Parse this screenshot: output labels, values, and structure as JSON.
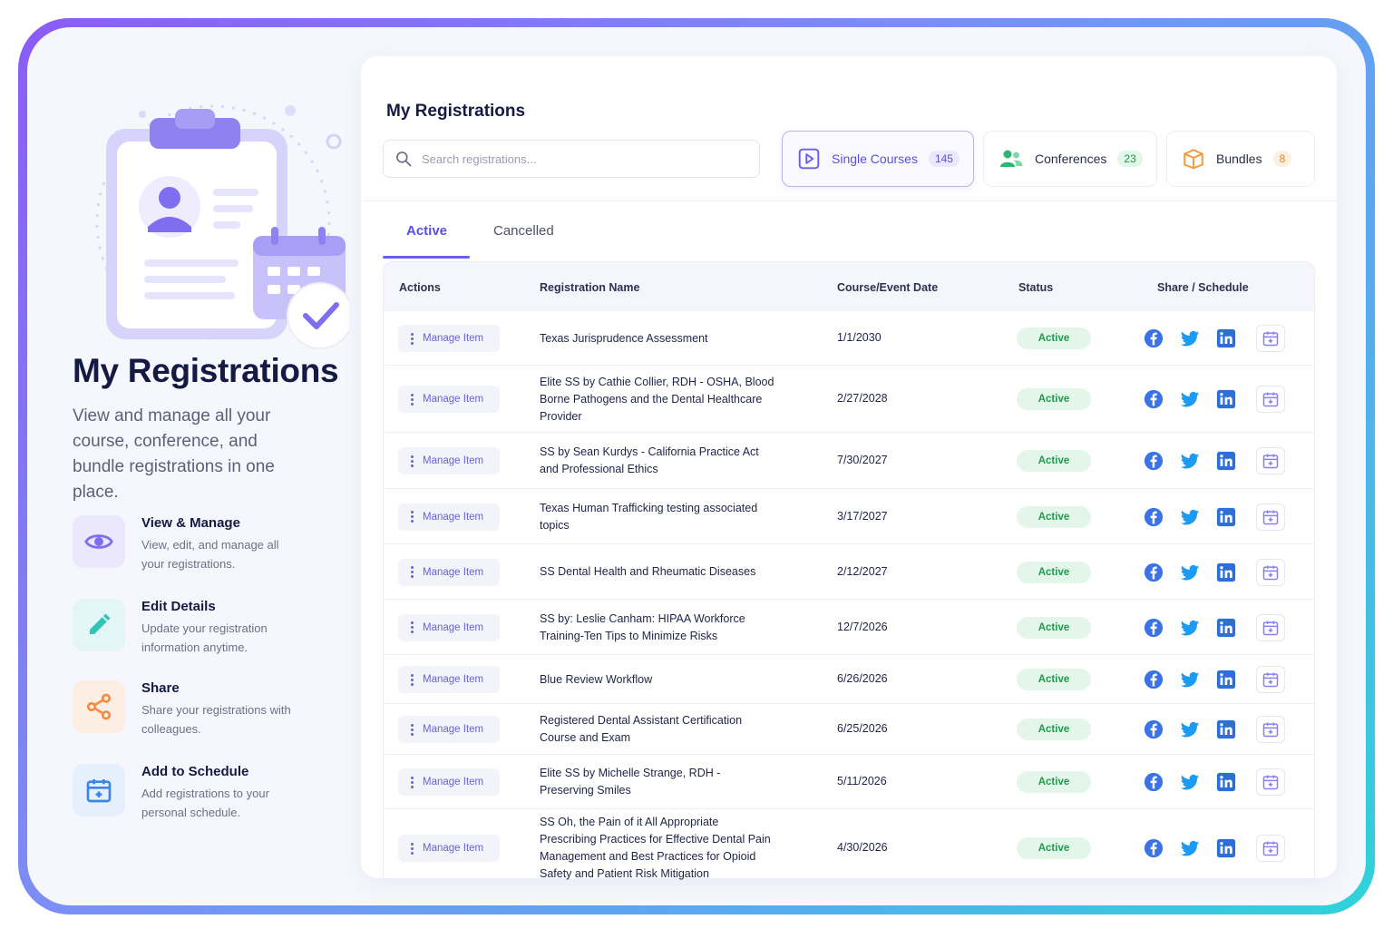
{
  "hero": {
    "title": "My Registrations",
    "subtitle": "View and manage all your course, conference, and bundle registrations in one place."
  },
  "features": [
    {
      "icon": "eye-icon",
      "title": "View & Manage",
      "desc": "View, edit, and manage all your registrations."
    },
    {
      "icon": "pencil-icon",
      "title": "Edit Details",
      "desc": "Update your registration information anytime."
    },
    {
      "icon": "share-icon",
      "title": "Share",
      "desc": "Share your registrations with colleagues."
    },
    {
      "icon": "calendar-add-icon",
      "title": "Add to Schedule",
      "desc": "Add registrations to your personal schedule."
    }
  ],
  "main": {
    "title": "My Registrations",
    "search_placeholder": "Search registrations...",
    "categories": [
      {
        "label": "Single Courses",
        "count": "145",
        "icon": "play-square-icon",
        "color": "#6a5ef0",
        "badge_bg": "#ebe8fd"
      },
      {
        "label": "Conferences",
        "count": "23",
        "icon": "users-icon",
        "color": "#2bb673",
        "badge_bg": "#e2f6ea"
      },
      {
        "label": "Bundles",
        "count": "8",
        "icon": "box-icon",
        "color": "#f39a3d",
        "badge_bg": "#fdf0e2"
      }
    ],
    "tabs": {
      "active": "Active",
      "cancelled": "Cancelled"
    },
    "columns": {
      "actions": "Actions",
      "name": "Registration Name",
      "date": "Course/Event Date",
      "status": "Status",
      "share": "Share / Schedule"
    },
    "manage_label": "Manage Item",
    "rows": [
      {
        "name": "Texas Jurisprudence Assessment",
        "date": "1/1/2030",
        "status": "Active"
      },
      {
        "name": "Elite SS by Cathie Collier, RDH - OSHA, Blood Borne Pathogens and the Dental Healthcare Provider",
        "date": "2/27/2028",
        "status": "Active"
      },
      {
        "name": "SS by Sean Kurdys - California Practice Act and Professional Ethics",
        "date": "7/30/2027",
        "status": "Active"
      },
      {
        "name": "Texas Human Trafficking testing associated topics",
        "date": "3/17/2027",
        "status": "Active"
      },
      {
        "name": "SS Dental Health and Rheumatic Diseases",
        "date": "2/12/2027",
        "status": "Active"
      },
      {
        "name": "SS by: Leslie Canham: HIPAA Workforce Training-Ten Tips to Minimize Risks",
        "date": "12/7/2026",
        "status": "Active"
      },
      {
        "name": "Blue Review Workflow",
        "date": "6/26/2026",
        "status": "Active"
      },
      {
        "name": "Registered Dental Assistant Certification Course and Exam",
        "date": "6/25/2026",
        "status": "Active"
      },
      {
        "name": "Elite SS by Michelle Strange, RDH - Preserving Smiles",
        "date": "5/11/2026",
        "status": "Active"
      },
      {
        "name": "SS Oh, the Pain of it All Appropriate Prescribing Practices for Effective Dental Pain Management and Best Practices for Opioid Safety and Patient Risk Mitigation",
        "date": "4/30/2026",
        "status": "Active"
      }
    ]
  },
  "colors": {
    "accent": "#6a5ef0",
    "facebook": "#3b72e6",
    "twitter": "#1d9bf0",
    "linkedin": "#2d6fd6",
    "status_bg": "#e4f6ea",
    "status_text": "#1f9a4e"
  }
}
